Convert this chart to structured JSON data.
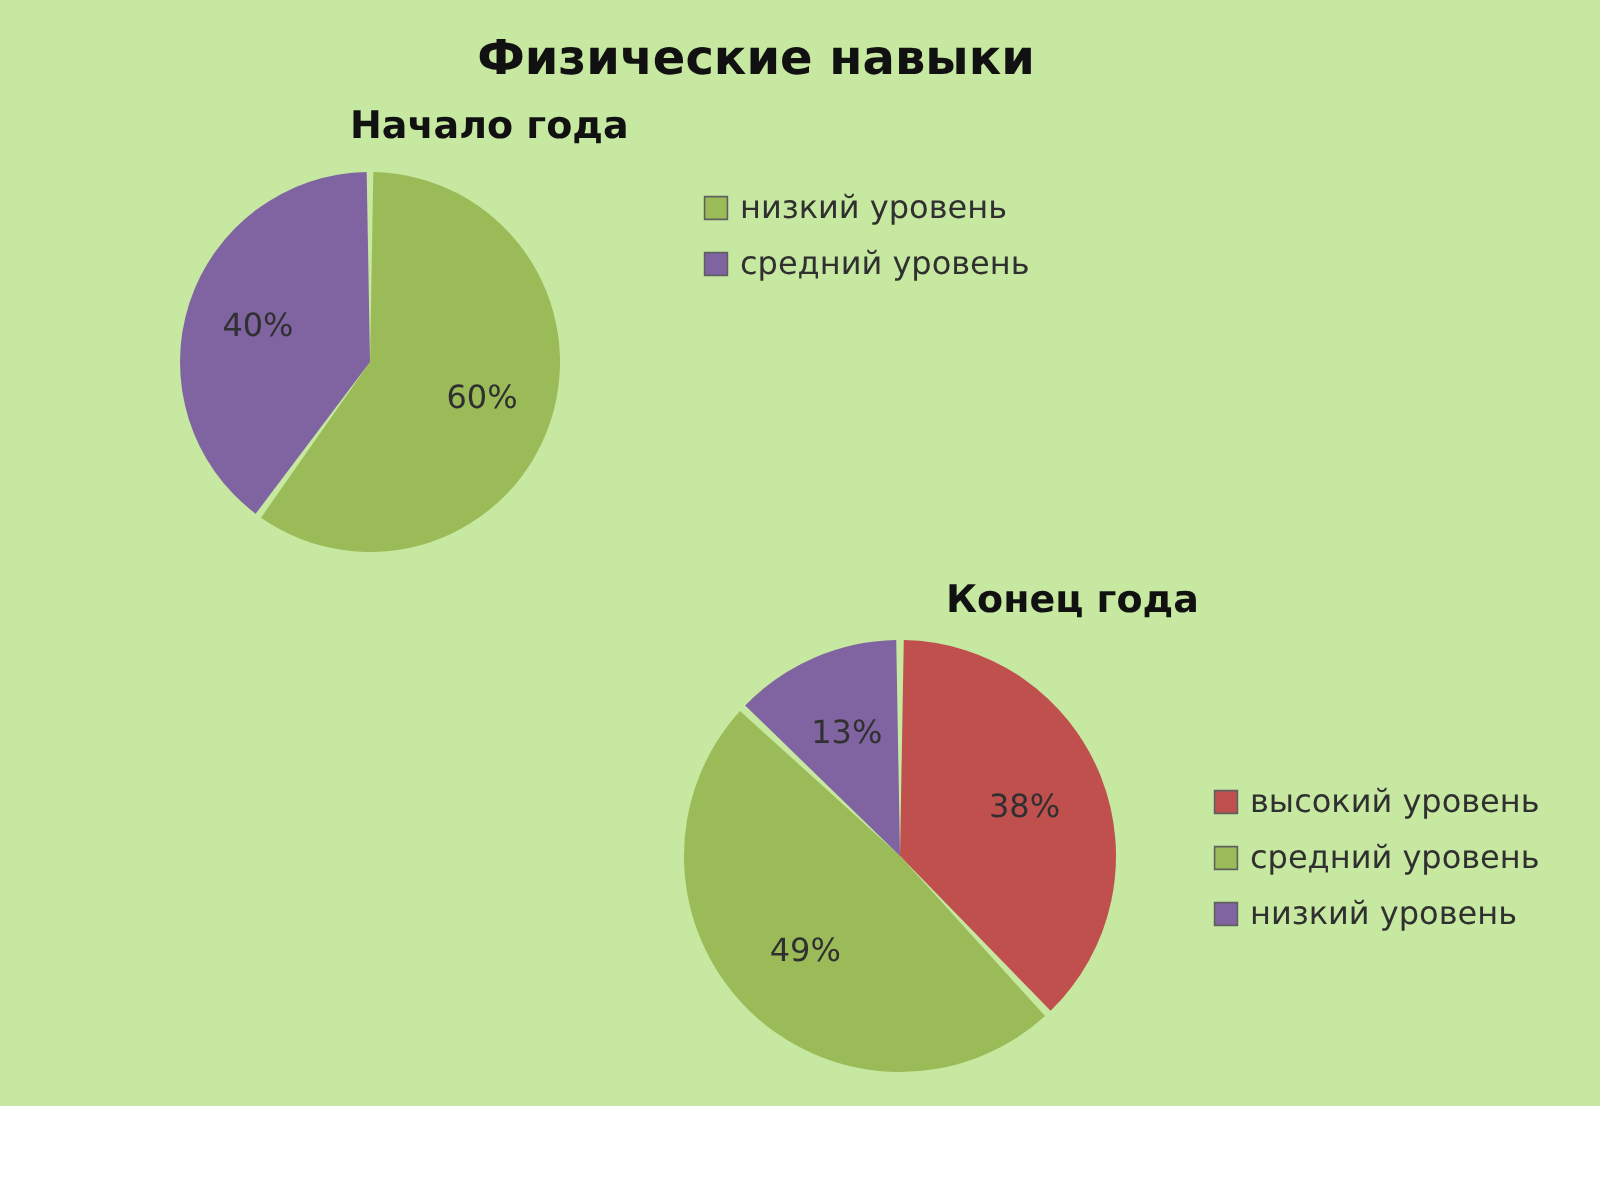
{
  "chart_data": [
    {
      "type": "pie",
      "title": "Физические навыки",
      "subtitle": "Начало года",
      "categories": [
        "низкий уровень",
        "средний уровень"
      ],
      "values": [
        60,
        40
      ],
      "colors": [
        "#9bbb59",
        "#8064a2"
      ],
      "value_labels": [
        "60%",
        "40%"
      ],
      "legend": "right"
    },
    {
      "type": "pie",
      "title": "Конец года",
      "categories": [
        "высокий уровень",
        "средний уровень",
        "низкий уровень"
      ],
      "values": [
        38,
        49,
        13
      ],
      "colors": [
        "#c0504d",
        "#9bbb59",
        "#8064a2"
      ],
      "value_labels": [
        "38%",
        "49%",
        "13%"
      ],
      "legend": "right"
    }
  ]
}
